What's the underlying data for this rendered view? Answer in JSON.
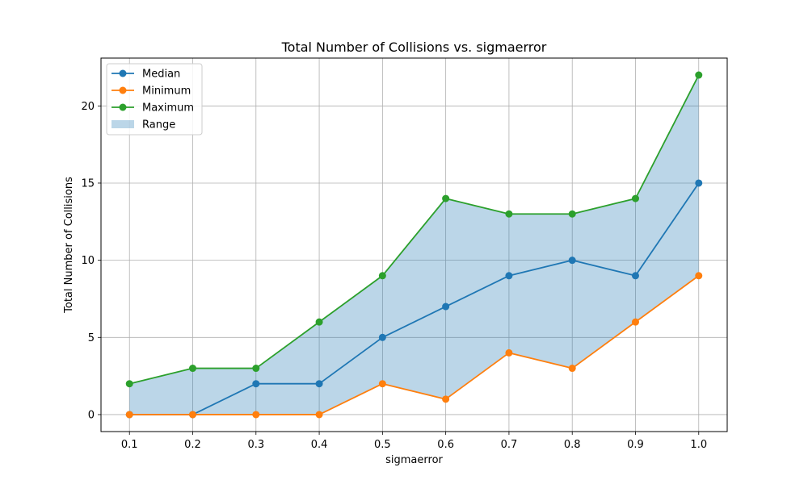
{
  "chart_data": {
    "type": "line",
    "title": "Total Number of Collisions vs. sigmaerror",
    "xlabel": "sigmaerror",
    "ylabel": "Total Number of Collisions",
    "x": [
      0.1,
      0.2,
      0.3,
      0.4,
      0.5,
      0.6,
      0.7,
      0.8,
      0.9,
      1.0
    ],
    "x_tick_labels": [
      "0.1",
      "0.2",
      "0.3",
      "0.4",
      "0.5",
      "0.6",
      "0.7",
      "0.8",
      "0.9",
      "1.0"
    ],
    "y_ticks": [
      0,
      5,
      10,
      15,
      20
    ],
    "y_tick_labels": [
      "0",
      "5",
      "10",
      "15",
      "20"
    ],
    "xlim": [
      0.055,
      1.045
    ],
    "ylim": [
      -1.1,
      23.1
    ],
    "grid": true,
    "legend_position": "top-left",
    "series": [
      {
        "name": "Median",
        "color": "#1f77b4",
        "values": [
          0,
          0,
          2,
          2,
          5,
          7,
          9,
          10,
          9,
          15
        ]
      },
      {
        "name": "Minimum",
        "color": "#ff7f0e",
        "values": [
          0,
          0,
          0,
          0,
          2,
          1,
          4,
          3,
          6,
          9
        ]
      },
      {
        "name": "Maximum",
        "color": "#2ca02c",
        "values": [
          2,
          3,
          3,
          6,
          9,
          14,
          13,
          13,
          14,
          22
        ]
      }
    ],
    "range": {
      "name": "Range",
      "color": "#1f77b4",
      "opacity": 0.3
    }
  }
}
